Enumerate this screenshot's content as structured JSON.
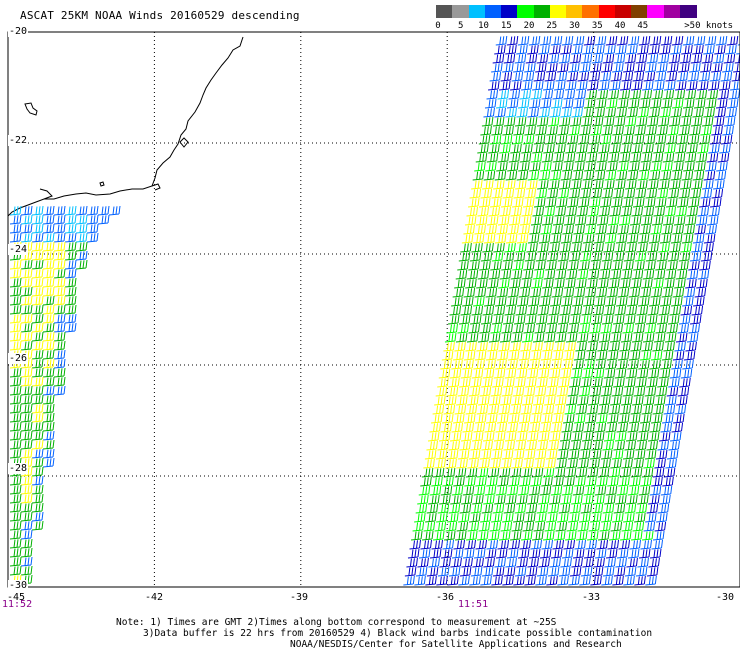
{
  "title": "ASCAT 25KM NOAA Winds 20160529 descending",
  "colorbar": {
    "segments": [
      "#555555",
      "#999999",
      "#00c0ff",
      "#0060ff",
      "#0000c8",
      "#00ff00",
      "#00b000",
      "#ffff00",
      "#ffc000",
      "#ff7000",
      "#ff0000",
      "#c80000",
      "#804000",
      "#ff00ff",
      "#a000a0",
      "#400080"
    ],
    "labels": [
      {
        "text": "0",
        "v": 0
      },
      {
        "text": "5",
        "v": 5
      },
      {
        "text": "10",
        "v": 10
      },
      {
        "text": "15",
        "v": 15
      },
      {
        "text": "20",
        "v": 20
      },
      {
        "text": "25",
        "v": 25
      },
      {
        "text": "30",
        "v": 30
      },
      {
        "text": "35",
        "v": 35
      },
      {
        "text": "40",
        "v": 40
      },
      {
        "text": "45",
        "v": 45
      },
      {
        "text": ">50 knots",
        "v": 50
      }
    ]
  },
  "map": {
    "lat_range": [
      -30,
      -20
    ],
    "lon_range": [
      -45,
      -30
    ],
    "lat_labels": [
      "-20",
      "-22",
      "-24",
      "-26",
      "-28",
      "-30"
    ],
    "lon_labels": [
      "-42",
      "-39",
      "-36",
      "-33",
      "-30"
    ],
    "lon_label_values": [
      -42,
      -39,
      -36,
      -33,
      -30
    ],
    "lat_label_values": [
      -20,
      -22,
      -24,
      -26,
      -28,
      -30
    ],
    "corner_lon_label": "-45",
    "time_labels": [
      {
        "text": "11:52",
        "lon": -45
      },
      {
        "text": "11:51",
        "lon": -35.1
      }
    ],
    "grid": "dotted",
    "wind_colors": {
      "light_blue": "#00c0ff",
      "blue": "#0060ff",
      "dark_blue": "#0000c8",
      "green": "#00b000",
      "bright_green": "#00ff00",
      "yellow": "#ffff00"
    }
  },
  "note": {
    "line1": "Note: 1) Times are GMT 2)Times along bottom correspond to measurement at ~25S",
    "line2": "3)Data buffer is 22 hrs from 20160529 4) Black wind barbs indicate possible contamination",
    "line3": "NOAA/NESDIS/Center for Satellite Applications and Research"
  }
}
